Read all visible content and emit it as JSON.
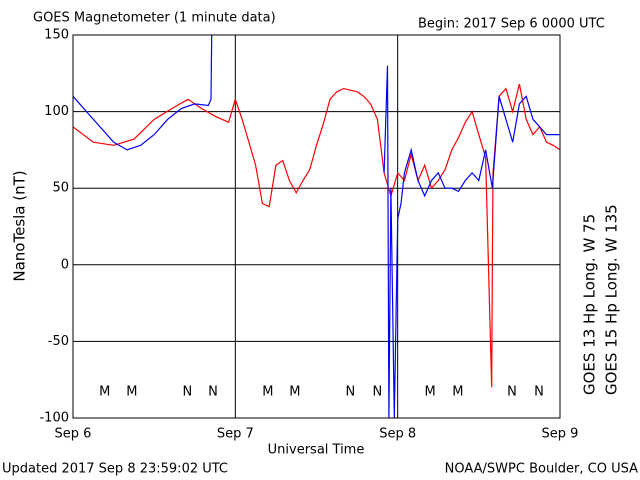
{
  "chart_data": {
    "type": "line",
    "title": "GOES Magnetometer (1 minute data)",
    "subtitle": "Begin:  2017 Sep 6 0000 UTC",
    "xlabel": "Universal Time",
    "ylabel": "NanoTesla (nT)",
    "footer_left": "Updated 2017 Sep  8 23:59:02 UTC",
    "footer_right": "NOAA/SWPC Boulder, CO USA",
    "xlim": [
      0,
      72
    ],
    "xticks": [
      {
        "value": 0,
        "label": "Sep 6"
      },
      {
        "value": 24,
        "label": "Sep 7"
      },
      {
        "value": 48,
        "label": "Sep 8"
      },
      {
        "value": 72,
        "label": "Sep 9"
      }
    ],
    "ylim": [
      -100,
      150
    ],
    "yticks": [
      -100,
      -50,
      0,
      50,
      100,
      150
    ],
    "grid": true,
    "series": [
      {
        "name": "GOES 13 Hp  Long. W 75",
        "color": "#ff0000",
        "x": [
          0,
          3,
          6,
          9,
          12,
          15,
          17,
          19,
          21,
          23,
          24,
          25,
          26,
          27,
          28,
          29,
          30,
          31,
          32,
          33,
          34,
          35,
          36,
          37,
          38,
          39,
          40,
          41,
          42,
          43,
          44,
          45,
          46,
          47,
          48,
          49,
          50,
          51,
          52,
          53,
          54,
          55,
          56,
          57,
          58,
          59,
          60,
          61,
          61.9,
          62,
          62.1,
          63,
          64,
          65,
          66,
          67,
          68,
          69,
          70,
          71,
          72
        ],
        "values": [
          90,
          80,
          78,
          82,
          95,
          103,
          108,
          102,
          97,
          93,
          108,
          95,
          80,
          65,
          40,
          38,
          65,
          68,
          55,
          47,
          55,
          62,
          78,
          92,
          108,
          113,
          115,
          114,
          113,
          110,
          105,
          95,
          60,
          45,
          60,
          55,
          72,
          55,
          65,
          50,
          55,
          62,
          75,
          83,
          93,
          100,
          85,
          70,
          -80,
          5,
          60,
          110,
          115,
          100,
          118,
          95,
          85,
          90,
          80,
          78,
          75
        ]
      },
      {
        "name": "GOES 15 Hp  Long. W 135",
        "color": "#0000ff",
        "x": [
          0,
          2,
          4,
          6,
          8,
          10,
          12,
          14,
          16,
          18,
          20,
          20.4,
          20.5,
          45,
          46,
          46.5,
          46.7,
          47,
          47.5,
          48,
          48.5,
          49,
          50,
          51,
          52,
          53,
          54,
          55,
          56,
          57,
          58,
          59,
          60,
          61,
          62,
          63,
          64,
          65,
          66,
          67,
          68,
          69,
          70,
          71,
          72
        ],
        "values": [
          110,
          100,
          90,
          80,
          75,
          78,
          85,
          95,
          102,
          105,
          104,
          108,
          150,
          null,
          60,
          130,
          -100,
          50,
          -100,
          30,
          40,
          60,
          75,
          55,
          45,
          55,
          60,
          50,
          50,
          48,
          55,
          60,
          55,
          75,
          50,
          110,
          95,
          80,
          105,
          110,
          95,
          90,
          85,
          85,
          85
        ]
      }
    ],
    "annotations": [
      {
        "text": "M",
        "x": 4.7,
        "color": "#ff0000"
      },
      {
        "text": "M",
        "x": 8.7,
        "color": "#0000ff"
      },
      {
        "text": "N",
        "x": 16.9,
        "color": "#ff0000"
      },
      {
        "text": "N",
        "x": 20.7,
        "color": "#0000ff"
      },
      {
        "text": "M",
        "x": 28.8,
        "color": "#ff0000"
      },
      {
        "text": "M",
        "x": 32.8,
        "color": "#0000ff"
      },
      {
        "text": "N",
        "x": 41,
        "color": "#ff0000"
      },
      {
        "text": "N",
        "x": 45,
        "color": "#0000ff"
      },
      {
        "text": "M",
        "x": 52.8,
        "color": "#ff0000"
      },
      {
        "text": "M",
        "x": 56.9,
        "color": "#0000ff"
      },
      {
        "text": "N",
        "x": 64.9,
        "color": "#ff0000"
      },
      {
        "text": "N",
        "x": 68.9,
        "color": "#0000ff"
      }
    ]
  }
}
